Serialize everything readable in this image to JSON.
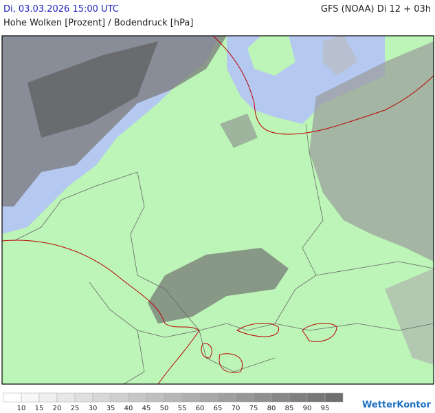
{
  "header": {
    "datetime": "Di, 03.03.2026 15:00 UTC",
    "model": "GFS (NOAA) Di 12 + 03h",
    "subtitle": "Hohe Wolken [Prozent] / Bodendruck [hPa]"
  },
  "legend": {
    "levels": [
      10,
      15,
      20,
      25,
      30,
      35,
      40,
      45,
      50,
      55,
      60,
      65,
      70,
      75,
      80,
      85,
      90,
      95
    ],
    "colors": [
      "#ffffff",
      "#f7f7f7",
      "#efefef",
      "#e7e7e7",
      "#dfdfdf",
      "#d7d7d7",
      "#cfcfcf",
      "#c7c7c7",
      "#bfbfbf",
      "#b7b7b7",
      "#afafaf",
      "#a7a7a7",
      "#9f9f9f",
      "#979797",
      "#8f8f8f",
      "#878787",
      "#7f7f7f",
      "#777777",
      "#6f6f6f"
    ]
  },
  "logo": "WetterKontor"
}
